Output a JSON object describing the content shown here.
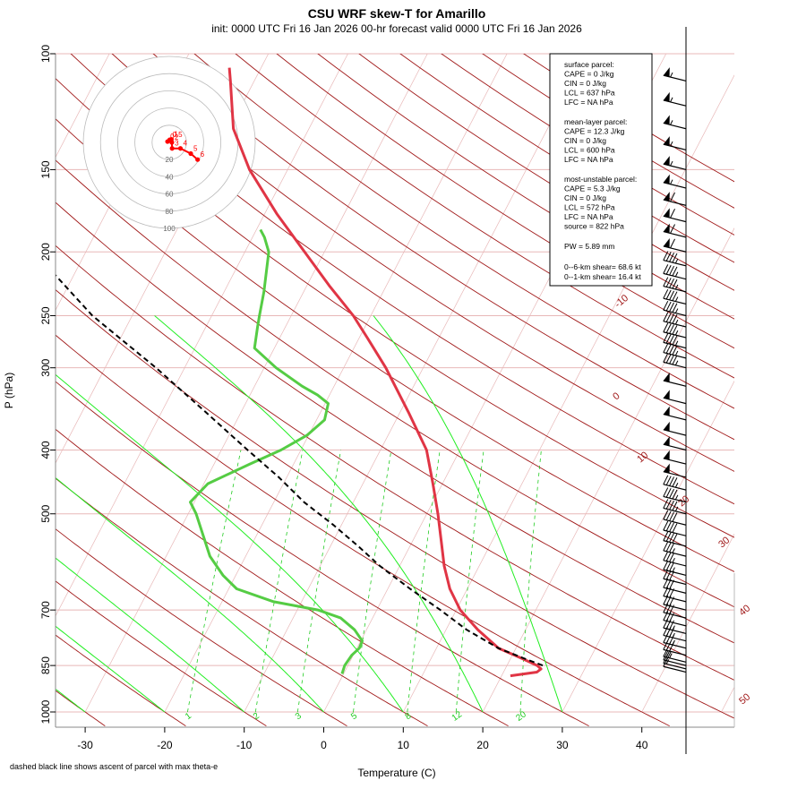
{
  "title": "CSU WRF skew-T for Amarillo",
  "subtitle": "init: 0000 UTC Fri 16 Jan 2026     00-hr forecast valid 0000 UTC Fri 16 Jan 2026",
  "xlabel": "Temperature (C)",
  "ylabel": "P (hPa)",
  "footnote": "dashed black line shows ascent of parcel with max theta-e",
  "colors": {
    "temperature": "#e03545",
    "dewpoint": "#55cc44",
    "parcel": "#000000",
    "dry_adiabat": "#a01818",
    "moist_adiabat": "#22ee22",
    "mixing_ratio": "#22cc22",
    "isotherm": "#e8b8b8",
    "hodograph": "#ff0000"
  },
  "info_box": {
    "surface_header": "surface parcel:",
    "surface_lines": [
      "CAPE = 0 J/kg",
      "CIN = 0 J/kg",
      "LCL = 637 hPa",
      "LFC = NA hPa"
    ],
    "mean_header": "mean-layer parcel:",
    "mean_lines": [
      "CAPE = 12.3 J/kg",
      "CIN = 0 J/kg",
      "LCL = 600 hPa",
      "LFC = NA hPa"
    ],
    "mu_header": "most-unstable parcel:",
    "mu_lines": [
      "CAPE = 5.3 J/kg",
      "CIN = 0 J/kg",
      "LCL = 572 hPa",
      "LFC = NA hPa",
      "source = 822 hPa"
    ],
    "pw": "PW =   5.89 mm",
    "shear6": "0--6-km shear= 68.6 kt",
    "shear1": "0--1-km shear= 16.4 kt"
  },
  "chart_data": {
    "type": "line",
    "chart_kind": "skew-T log-P diagram",
    "x_ticks": [
      -30,
      -20,
      -10,
      0,
      10,
      20,
      30,
      40
    ],
    "pressure_ticks": [
      100,
      150,
      200,
      250,
      300,
      400,
      500,
      700,
      850,
      1000
    ],
    "xlim": [
      -33,
      45
    ],
    "ylim_hPa": [
      1000,
      100
    ],
    "y_scale": "log",
    "dry_adiabat_labels": [
      -10,
      0,
      10,
      20,
      30,
      40,
      50
    ],
    "mixing_ratio_labels": [
      "1",
      "2",
      "3",
      "5",
      "8",
      "12",
      "20"
    ],
    "series": [
      {
        "name": "temperature",
        "points": [
          [
            881,
            21.1
          ],
          [
            870,
            24.2
          ],
          [
            860,
            24.5
          ],
          [
            850,
            23.8
          ],
          [
            830,
            21.5
          ],
          [
            800,
            17.8
          ],
          [
            750,
            14.0
          ],
          [
            700,
            10.5
          ],
          [
            650,
            7.8
          ],
          [
            600,
            5.6
          ],
          [
            550,
            3.6
          ],
          [
            500,
            1.4
          ],
          [
            450,
            -1.2
          ],
          [
            400,
            -4.2
          ],
          [
            350,
            -9.0
          ],
          [
            300,
            -14.7
          ],
          [
            270,
            -19.0
          ],
          [
            250,
            -22.2
          ],
          [
            225,
            -27.2
          ],
          [
            200,
            -32.5
          ],
          [
            175,
            -38.5
          ],
          [
            150,
            -44.8
          ],
          [
            130,
            -49.5
          ],
          [
            110,
            -53.0
          ],
          [
            105,
            -54.0
          ]
        ]
      },
      {
        "name": "dewpoint",
        "points": [
          [
            875,
            -0.2
          ],
          [
            850,
            -0.4
          ],
          [
            820,
            -0.2
          ],
          [
            800,
            0.3
          ],
          [
            780,
            0.2
          ],
          [
            750,
            -1.5
          ],
          [
            720,
            -4.0
          ],
          [
            700,
            -7.4
          ],
          [
            680,
            -13.5
          ],
          [
            650,
            -19.0
          ],
          [
            620,
            -21.6
          ],
          [
            580,
            -24.5
          ],
          [
            500,
            -29.0
          ],
          [
            480,
            -30.5
          ],
          [
            450,
            -29.5
          ],
          [
            420,
            -25.5
          ],
          [
            400,
            -22.5
          ],
          [
            380,
            -20.2
          ],
          [
            360,
            -19.0
          ],
          [
            340,
            -19.6
          ],
          [
            330,
            -21.5
          ],
          [
            320,
            -24.0
          ],
          [
            300,
            -28.5
          ],
          [
            280,
            -32.5
          ],
          [
            260,
            -33.5
          ],
          [
            250,
            -34.0
          ],
          [
            230,
            -35.0
          ],
          [
            200,
            -37.0
          ],
          [
            190,
            -38.5
          ],
          [
            185,
            -39.5
          ]
        ]
      },
      {
        "name": "parcel",
        "points": [
          [
            850,
            24.5
          ],
          [
            830,
            21.8
          ],
          [
            800,
            17.8
          ],
          [
            750,
            12.6
          ],
          [
            700,
            8.0
          ],
          [
            650,
            2.8
          ],
          [
            600,
            -2.5
          ],
          [
            560,
            -6.5
          ],
          [
            520,
            -11.0
          ],
          [
            480,
            -16.2
          ],
          [
            440,
            -21.0
          ],
          [
            400,
            -26.7
          ],
          [
            350,
            -34.5
          ],
          [
            300,
            -43.6
          ],
          [
            250,
            -55.0
          ],
          [
            200,
            -66.5
          ],
          [
            150,
            -82.0
          ],
          [
            125,
            -90.0
          ],
          [
            110,
            -96.0
          ]
        ]
      }
    ],
    "hodograph": {
      "ring_labels": [
        "20",
        "40",
        "60",
        "80",
        "100"
      ],
      "points": [
        [
          -2,
          1
        ],
        [
          0.5,
          3
        ],
        [
          2.5,
          3.5
        ],
        [
          3,
          0
        ],
        [
          3.3,
          -7
        ],
        [
          13,
          -7
        ],
        [
          25,
          -13
        ],
        [
          33,
          -20
        ]
      ],
      "point_labels": [
        "0",
        "0.5",
        "1",
        "2",
        "3",
        "4",
        "5",
        "6"
      ]
    },
    "wind_barbs": [
      {
        "p": 110,
        "kt": 55
      },
      {
        "p": 120,
        "kt": 55
      },
      {
        "p": 130,
        "kt": 55
      },
      {
        "p": 140,
        "kt": 55
      },
      {
        "p": 150,
        "kt": 55
      },
      {
        "p": 160,
        "kt": 55
      },
      {
        "p": 170,
        "kt": 60
      },
      {
        "p": 180,
        "kt": 60
      },
      {
        "p": 190,
        "kt": 60
      },
      {
        "p": 200,
        "kt": 60
      },
      {
        "p": 210,
        "kt": 45
      },
      {
        "p": 220,
        "kt": 45
      },
      {
        "p": 230,
        "kt": 45
      },
      {
        "p": 240,
        "kt": 45
      },
      {
        "p": 250,
        "kt": 45
      },
      {
        "p": 260,
        "kt": 45
      },
      {
        "p": 270,
        "kt": 45
      },
      {
        "p": 280,
        "kt": 45
      },
      {
        "p": 290,
        "kt": 45
      },
      {
        "p": 300,
        "kt": 45
      },
      {
        "p": 320,
        "kt": 50
      },
      {
        "p": 340,
        "kt": 50
      },
      {
        "p": 360,
        "kt": 50
      },
      {
        "p": 380,
        "kt": 50
      },
      {
        "p": 400,
        "kt": 50
      },
      {
        "p": 420,
        "kt": 50
      },
      {
        "p": 440,
        "kt": 50
      },
      {
        "p": 460,
        "kt": 45
      },
      {
        "p": 480,
        "kt": 45
      },
      {
        "p": 500,
        "kt": 45
      },
      {
        "p": 520,
        "kt": 40
      },
      {
        "p": 540,
        "kt": 40
      },
      {
        "p": 560,
        "kt": 40
      },
      {
        "p": 580,
        "kt": 35
      },
      {
        "p": 600,
        "kt": 35
      },
      {
        "p": 620,
        "kt": 35
      },
      {
        "p": 640,
        "kt": 30
      },
      {
        "p": 660,
        "kt": 30
      },
      {
        "p": 680,
        "kt": 30
      },
      {
        "p": 700,
        "kt": 30
      },
      {
        "p": 720,
        "kt": 30
      },
      {
        "p": 740,
        "kt": 30
      },
      {
        "p": 760,
        "kt": 35
      },
      {
        "p": 780,
        "kt": 35
      },
      {
        "p": 800,
        "kt": 35
      },
      {
        "p": 820,
        "kt": 30
      },
      {
        "p": 840,
        "kt": 25
      },
      {
        "p": 850,
        "kt": 20
      },
      {
        "p": 860,
        "kt": 15
      },
      {
        "p": 870,
        "kt": 10
      }
    ]
  }
}
